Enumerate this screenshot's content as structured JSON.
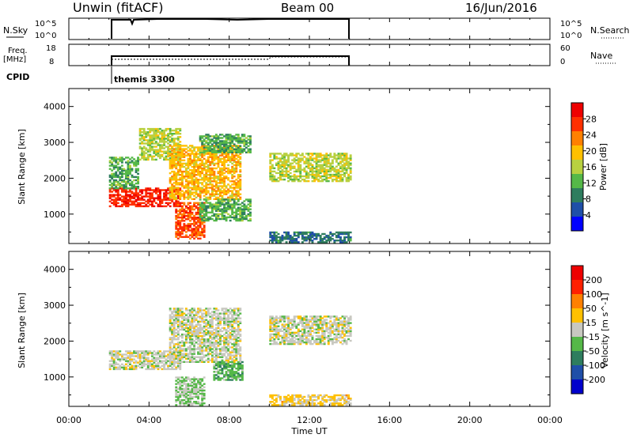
{
  "header": {
    "station": "Unwin (fitACF)",
    "beam": "Beam 00",
    "date": "16/Jun/2016"
  },
  "strips": {
    "nsky_label": "N.Sky",
    "nsky_ticks": [
      "10^5",
      "10^0"
    ],
    "nsky_right_ticks": [
      "10^5",
      "10^0"
    ],
    "nsearch_label": "N.Search",
    "freq_label_line1": "Freq.",
    "freq_label_line2": "[MHz]",
    "freq_ticks": [
      "18",
      "8"
    ],
    "nave_ticks": [
      "60",
      "0"
    ],
    "nave_label": "Nave",
    "cpid_label": "CPID",
    "cpid_value": "themis 3300"
  },
  "power_panel": {
    "ylabel": "Slant Range [km]",
    "yticks": [
      "4000",
      "3000",
      "2000",
      "1000"
    ],
    "colorbar_label": "Power [dB]",
    "colorbar_ticks": [
      "28",
      "24",
      "20",
      "16",
      "12",
      "8",
      "4"
    ],
    "colors": [
      "#0000ff",
      "#1f4fa8",
      "#2e7d5e",
      "#55b848",
      "#b8d040",
      "#ffc000",
      "#ff8000",
      "#ff3000",
      "#ee0000"
    ]
  },
  "velocity_panel": {
    "ylabel": "Slant Range [km]",
    "yticks": [
      "4000",
      "3000",
      "2000",
      "1000"
    ],
    "colorbar_label": "Velocity [m s^-1]",
    "colorbar_ticks": [
      "200",
      "100",
      "50",
      "15",
      "-15",
      "-50",
      "-100",
      "-200"
    ],
    "colors": [
      "#0000cc",
      "#1f4fa8",
      "#2e7d5e",
      "#55b848",
      "#c8c8c0",
      "#ffc000",
      "#ff8000",
      "#ff2000",
      "#ee0000"
    ]
  },
  "xaxis": {
    "label": "Time UT",
    "ticks": [
      "00:00",
      "04:00",
      "08:00",
      "12:00",
      "16:00",
      "20:00",
      "00:00"
    ]
  },
  "chart_data": {
    "type": "heatmap",
    "x_range_hours": [
      0,
      24
    ],
    "y_range_km": [
      180,
      4500
    ],
    "data_interval_hours": [
      2.0,
      14.1
    ],
    "power_regions": [
      {
        "t": [
          2.0,
          5.5
        ],
        "r": [
          1200,
          1700
        ],
        "value": 28
      },
      {
        "t": [
          2.0,
          3.5
        ],
        "r": [
          1700,
          2600
        ],
        "value": 12
      },
      {
        "t": [
          3.5,
          5.5
        ],
        "r": [
          2500,
          3400
        ],
        "value": 16
      },
      {
        "t": [
          5.0,
          8.5
        ],
        "r": [
          1400,
          2900
        ],
        "value": 20
      },
      {
        "t": [
          6.5,
          9.0
        ],
        "r": [
          2700,
          3200
        ],
        "value": 12
      },
      {
        "t": [
          5.3,
          6.7
        ],
        "r": [
          300,
          1300
        ],
        "value": 26
      },
      {
        "t": [
          6.5,
          9.0
        ],
        "r": [
          800,
          1400
        ],
        "value": 12
      },
      {
        "t": [
          10.0,
          14.0
        ],
        "r": [
          1900,
          2700
        ],
        "value": 16
      },
      {
        "t": [
          10.0,
          14.0
        ],
        "r": [
          200,
          500
        ],
        "value": 8
      }
    ],
    "velocity_regions": [
      {
        "t": [
          2.0,
          5.5
        ],
        "r": [
          1200,
          1700
        ],
        "value": 0
      },
      {
        "t": [
          5.0,
          8.5
        ],
        "r": [
          1400,
          2900
        ],
        "value": 0
      },
      {
        "t": [
          10.0,
          14.0
        ],
        "r": [
          1900,
          2700
        ],
        "value": 0
      },
      {
        "t": [
          7.2,
          8.6
        ],
        "r": [
          900,
          1400
        ],
        "value": -60
      },
      {
        "t": [
          5.3,
          6.7
        ],
        "r": [
          200,
          1000
        ],
        "value": -30
      },
      {
        "t": [
          10.0,
          14.0
        ],
        "r": [
          200,
          500
        ],
        "value": 40
      }
    ]
  }
}
